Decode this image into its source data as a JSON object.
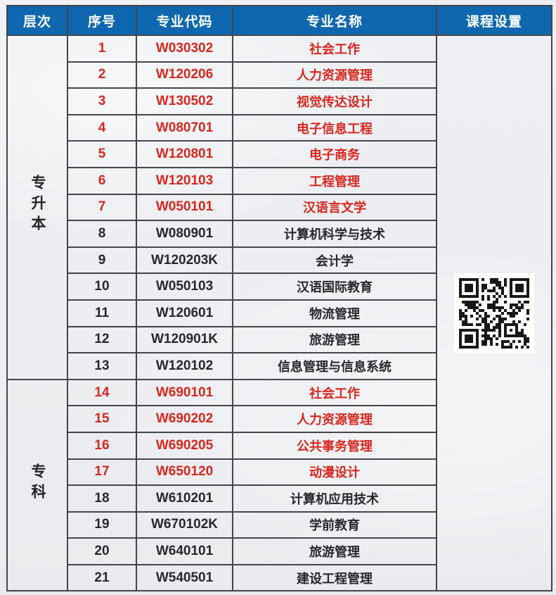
{
  "colors": {
    "header_bg": "#0f67af",
    "header_text": "#ffffff",
    "border": "#42464b",
    "highlight_red": "#d8271e",
    "body_text": "#26282b",
    "page_bg": "#edeff2"
  },
  "table": {
    "headers": [
      "层次",
      "序号",
      "专业代码",
      "专业名称",
      "课程设置"
    ],
    "sections": [
      {
        "level": "专升本",
        "rows": [
          {
            "no": "1",
            "code": "W030302",
            "name": "社会工作",
            "highlight": true
          },
          {
            "no": "2",
            "code": "W120206",
            "name": "人力资源管理",
            "highlight": true
          },
          {
            "no": "3",
            "code": "W130502",
            "name": "视觉传达设计",
            "highlight": true
          },
          {
            "no": "4",
            "code": "W080701",
            "name": "电子信息工程",
            "highlight": true
          },
          {
            "no": "5",
            "code": "W120801",
            "name": "电子商务",
            "highlight": true
          },
          {
            "no": "6",
            "code": "W120103",
            "name": "工程管理",
            "highlight": true
          },
          {
            "no": "7",
            "code": "W050101",
            "name": "汉语言文学",
            "highlight": true
          },
          {
            "no": "8",
            "code": "W080901",
            "name": "计算机科学与技术",
            "highlight": false
          },
          {
            "no": "9",
            "code": "W120203K",
            "name": "会计学",
            "highlight": false
          },
          {
            "no": "10",
            "code": "W050103",
            "name": "汉语国际教育",
            "highlight": false
          },
          {
            "no": "11",
            "code": "W120601",
            "name": "物流管理",
            "highlight": false
          },
          {
            "no": "12",
            "code": "W120901K",
            "name": "旅游管理",
            "highlight": false
          },
          {
            "no": "13",
            "code": "W120102",
            "name": "信息管理与信息系统",
            "highlight": false
          }
        ]
      },
      {
        "level": "专科",
        "rows": [
          {
            "no": "14",
            "code": "W690101",
            "name": "社会工作",
            "highlight": true
          },
          {
            "no": "15",
            "code": "W690202",
            "name": "人力资源管理",
            "highlight": true
          },
          {
            "no": "16",
            "code": "W690205",
            "name": "公共事务管理",
            "highlight": true
          },
          {
            "no": "17",
            "code": "W650120",
            "name": "动漫设计",
            "highlight": true
          },
          {
            "no": "18",
            "code": "W610201",
            "name": "计算机应用技术",
            "highlight": false
          },
          {
            "no": "19",
            "code": "W670102K",
            "name": "学前教育",
            "highlight": false
          },
          {
            "no": "20",
            "code": "W640101",
            "name": "旅游管理",
            "highlight": false
          },
          {
            "no": "21",
            "code": "W540501",
            "name": "建设工程管理",
            "highlight": false
          }
        ]
      }
    ],
    "qr": {
      "icon": "qr-code",
      "modules": 25
    }
  }
}
